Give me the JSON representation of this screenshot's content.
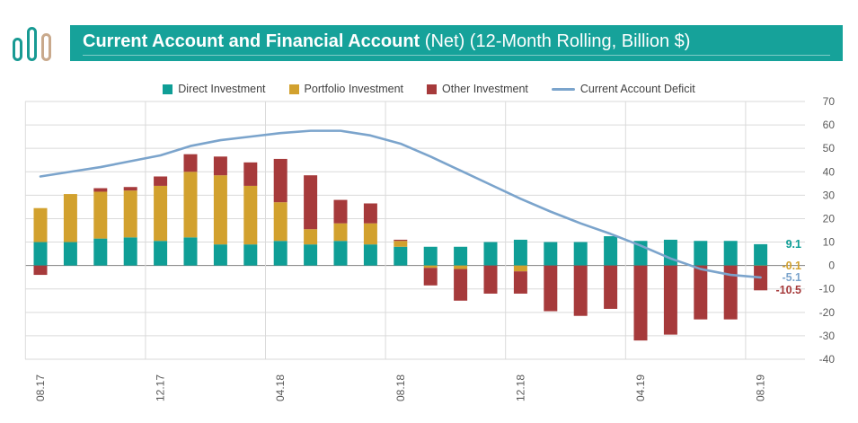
{
  "header": {
    "title_main": "Current Account and Financial Account",
    "title_rest": "(Net) (12-Month Rolling, Billion $)"
  },
  "colors": {
    "banner_teal": "#16a29a",
    "logo_teal": "#189a93",
    "logo_tan": "#c9a98c",
    "grid": "#dadada",
    "zero_line": "#808080",
    "axis_text": "#595959"
  },
  "chart_data": {
    "type": "bar",
    "subtype": "stacked-bar-with-line",
    "title": "Current Account and Financial Account (Net) (12-Month Rolling, Billion $)",
    "xlabel": "",
    "ylabel": "",
    "ylim": [
      -40,
      70
    ],
    "y_ticks": [
      70,
      60,
      50,
      40,
      30,
      20,
      10,
      0,
      -10,
      -20,
      -30,
      -40
    ],
    "grid": true,
    "legend_position": "top",
    "categories": [
      "08.17",
      "09.17",
      "10.17",
      "11.17",
      "12.17",
      "01.18",
      "02.18",
      "03.18",
      "04.18",
      "05.18",
      "06.18",
      "07.18",
      "08.18",
      "09.18",
      "10.18",
      "11.18",
      "12.18",
      "01.19",
      "02.19",
      "03.19",
      "04.19",
      "05.19",
      "06.19",
      "07.19",
      "08.19"
    ],
    "x_tick_labels": [
      "08.17",
      "12.17",
      "04.18",
      "08.18",
      "12.18",
      "04.19",
      "08.19"
    ],
    "x_tick_indices": [
      0,
      4,
      8,
      12,
      16,
      20,
      24
    ],
    "series": [
      {
        "name": "Direct Investment",
        "type": "bar",
        "color": "#0f9e96",
        "values": [
          10,
          10,
          11.5,
          12,
          10.5,
          12,
          9,
          9,
          10.5,
          9,
          10.5,
          9,
          8,
          8,
          8,
          10,
          11,
          10,
          10,
          12.5,
          10.5,
          11,
          10.5,
          10.5,
          9.1
        ]
      },
      {
        "name": "Portfolio Investment",
        "type": "bar",
        "color": "#d2a12e",
        "values": [
          14.5,
          20.5,
          20,
          20,
          23.5,
          28,
          29.5,
          25,
          16.5,
          6.5,
          7.5,
          9,
          2.5,
          -1,
          -1.5,
          0,
          -2.5,
          0,
          0,
          0,
          0,
          0,
          0,
          0,
          -0.1
        ]
      },
      {
        "name": "Other Investment",
        "type": "bar",
        "color": "#a63a3b",
        "values": [
          -4,
          0,
          1.5,
          1.5,
          4,
          7.5,
          8,
          10,
          18.5,
          23,
          10,
          8.5,
          0.5,
          -7.5,
          -13.5,
          -12,
          -9.5,
          -19.5,
          -21.5,
          -18.5,
          -32,
          -29.5,
          -23,
          -23,
          -10.5
        ]
      },
      {
        "name": "Current Account Deficit",
        "type": "line",
        "color": "#7ba4cc",
        "values": [
          38,
          40,
          42,
          44.5,
          47,
          51,
          53.5,
          55,
          56.5,
          57.5,
          57.5,
          55.5,
          52,
          46.5,
          40.5,
          34.5,
          28.5,
          23,
          18,
          13.5,
          8.5,
          3,
          -1.5,
          -4,
          -5.1
        ]
      }
    ],
    "end_labels": [
      {
        "text": "9.1",
        "value": 9.1,
        "series": "Direct Investment",
        "color": "#0f9e96"
      },
      {
        "text": "-0.1",
        "value": -0.1,
        "series": "Portfolio Investment",
        "color": "#d2a12e"
      },
      {
        "text": "-5.1",
        "value": -5.1,
        "series": "Current Account Deficit",
        "color": "#7ba4cc"
      },
      {
        "text": "-10.5",
        "value": -10.5,
        "series": "Other Investment",
        "color": "#a63a3b"
      }
    ]
  }
}
